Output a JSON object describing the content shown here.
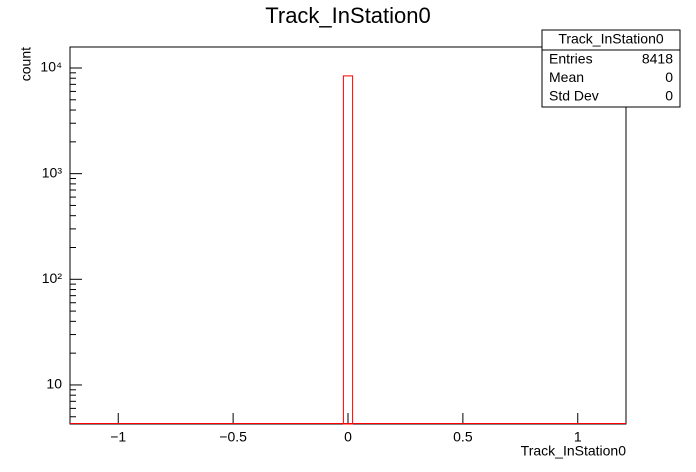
{
  "chart_data": {
    "type": "histogram",
    "title": "Track_InStation0",
    "x_label": "Track_InStation0",
    "y_label": "count",
    "bins": [
      -0.02,
      0.02
    ],
    "values": [
      8418
    ],
    "color": "#ff0000",
    "xlim": [
      -1.21,
      1.21
    ],
    "xticks": [
      {
        "value": -1,
        "label": "−1"
      },
      {
        "value": -0.5,
        "label": "−0.5"
      },
      0,
      0.5,
      1
    ],
    "ylim": [
      4.27,
      15800
    ],
    "log_y": true,
    "yticks": [
      10,
      {
        "value": 100,
        "label": "10²"
      },
      {
        "value": 1000,
        "label": "10³"
      },
      {
        "value": 10000,
        "label": "10⁴"
      }
    ],
    "stats": {
      "title": "Track_InStation0",
      "rows": [
        [
          "Entries",
          8418
        ],
        [
          "Mean",
          0
        ],
        [
          "Std Dev",
          0
        ]
      ]
    }
  }
}
